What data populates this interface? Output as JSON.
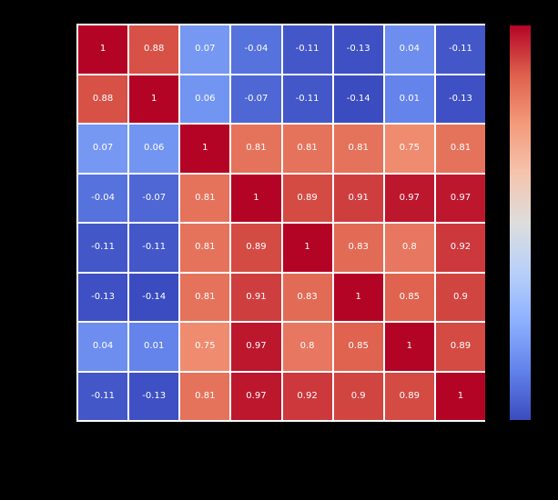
{
  "figure": {
    "background_color": "#000000"
  },
  "chart_data": {
    "type": "heatmap",
    "rows": 8,
    "cols": 8,
    "matrix": [
      [
        1,
        0.88,
        0.07,
        -0.04,
        -0.11,
        -0.13,
        0.04,
        -0.11
      ],
      [
        0.88,
        1,
        0.06,
        -0.07,
        -0.11,
        -0.14,
        0.01,
        -0.13
      ],
      [
        0.07,
        0.06,
        1,
        0.81,
        0.81,
        0.81,
        0.75,
        0.81
      ],
      [
        -0.04,
        -0.07,
        0.81,
        1,
        0.89,
        0.91,
        0.97,
        0.97
      ],
      [
        -0.11,
        -0.11,
        0.81,
        0.89,
        1,
        0.83,
        0.8,
        0.92
      ],
      [
        -0.13,
        -0.14,
        0.81,
        0.91,
        0.83,
        1,
        0.85,
        0.9
      ],
      [
        0.04,
        0.01,
        0.75,
        0.97,
        0.8,
        0.85,
        1,
        0.89
      ],
      [
        -0.11,
        -0.13,
        0.81,
        0.97,
        0.92,
        0.9,
        0.89,
        1
      ]
    ],
    "annotations_shown": true,
    "annotation_text_color": "#ffffff",
    "gridline_color": "#ffffff",
    "vmin": -0.14,
    "vmax": 1,
    "colormap": "coolwarm",
    "colormap_anchors": [
      "#3b4cc0",
      "#6282ea",
      "#8db0fe",
      "#b8d0f9",
      "#dddddd",
      "#f5c4ad",
      "#f49a7b",
      "#de604d",
      "#b40426"
    ],
    "colorbar": {
      "position": "right",
      "tick_labels_visible": false
    },
    "title": "",
    "xlabel": "",
    "ylabel": "",
    "axis_tick_labels_visible": false
  }
}
